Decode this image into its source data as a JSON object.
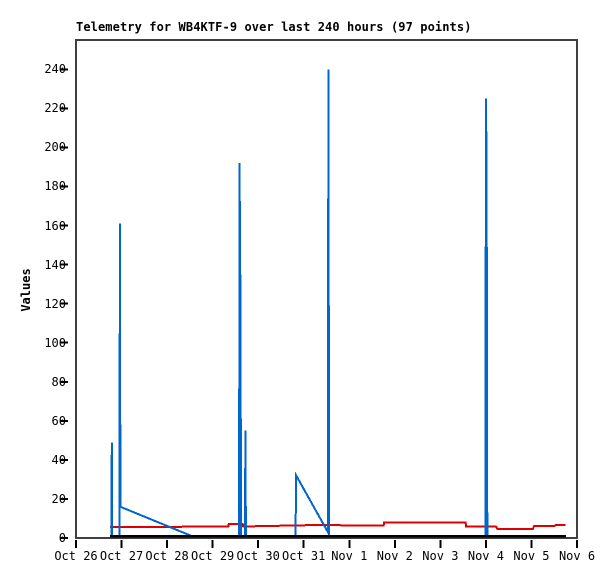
{
  "window": {
    "background": "#ffffff"
  },
  "chart_data": {
    "type": "line",
    "title": "Telemetry for WB4KTF-9 over last 240 hours (97 points)",
    "ylabel": "Values",
    "xlabel": "",
    "legend": "none",
    "grid": false,
    "ylim": [
      0,
      255
    ],
    "y_ticks": [
      0,
      20,
      40,
      60,
      80,
      100,
      120,
      140,
      160,
      180,
      200,
      220,
      240
    ],
    "x_ticks": [
      "Oct 26",
      "Oct 27",
      "Oct 28",
      "Oct 29",
      "Oct 30",
      "Oct 31",
      "Nov 1",
      "Nov 2",
      "Nov 3",
      "Nov 4",
      "Nov 5",
      "Nov 6"
    ],
    "xlim_days": [
      0,
      11
    ],
    "axis": {
      "border_color": "#404040",
      "tick_color": "#000000",
      "text_color": "#000000"
    },
    "series": [
      {
        "name": "secondary-red",
        "color": "#dd0000",
        "width": 2,
        "points": [
          [
            0.75,
            5.6
          ],
          [
            2.3,
            5.6
          ],
          [
            2.35,
            5.9
          ],
          [
            3.345,
            5.9
          ],
          [
            3.355,
            7.2
          ],
          [
            3.66,
            7.2
          ],
          [
            3.67,
            5.9
          ],
          [
            4.3,
            6.2
          ],
          [
            5.2,
            6.6
          ],
          [
            6.755,
            6.4
          ],
          [
            6.765,
            7.9
          ],
          [
            8.555,
            7.9
          ],
          [
            8.565,
            6.0
          ],
          [
            9.22,
            6.0
          ],
          [
            9.25,
            4.6
          ],
          [
            10.03,
            4.6
          ],
          [
            10.06,
            6.2
          ],
          [
            10.51,
            6.2
          ],
          [
            10.53,
            6.6
          ],
          [
            10.75,
            6.6
          ]
        ]
      },
      {
        "name": "telemetry-values-blue",
        "color": "#0066cc",
        "width": 2,
        "points": [
          [
            0.75,
            0.8
          ],
          [
            0.78,
            0.8
          ],
          [
            0.785,
            49
          ],
          [
            0.79,
            0.8
          ],
          [
            0.955,
            0.8
          ],
          [
            0.963,
            161
          ],
          [
            0.975,
            16
          ],
          [
            2.56,
            0.8
          ],
          [
            3.58,
            0.8
          ],
          [
            3.59,
            192
          ],
          [
            3.61,
            124
          ],
          [
            3.625,
            0.8
          ],
          [
            3.71,
            0.8
          ],
          [
            3.72,
            55
          ],
          [
            3.73,
            0.8
          ],
          [
            4.82,
            0.8
          ],
          [
            4.835,
            32
          ],
          [
            5.53,
            3
          ],
          [
            5.542,
            240
          ],
          [
            5.556,
            0.8
          ],
          [
            8.99,
            0.8
          ],
          [
            9.0,
            225
          ],
          [
            9.015,
            192
          ],
          [
            9.03,
            0.8
          ],
          [
            10.75,
            0.8
          ]
        ]
      },
      {
        "name": "baseline-black",
        "color": "#000000",
        "width": 2.5,
        "points": [
          [
            0.75,
            1.0
          ],
          [
            10.76,
            1.0
          ]
        ]
      }
    ]
  }
}
